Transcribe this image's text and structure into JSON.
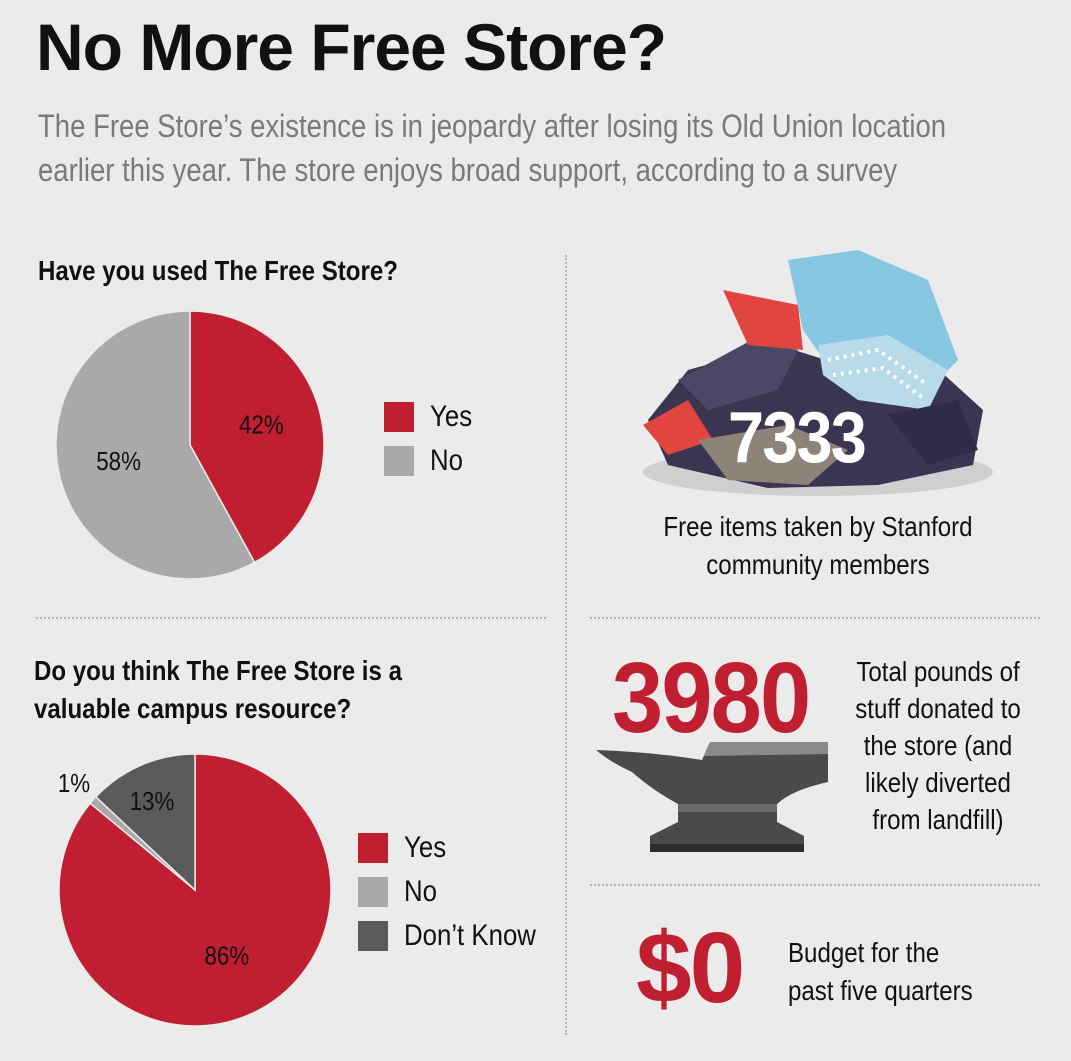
{
  "title": "No More Free Store?",
  "subtitle_line1": "The Free Store’s existence is in jeopardy after losing its Old Union location",
  "subtitle_line2": "earlier this year. The store enjoys broad support, according to a survey",
  "colors": {
    "red": "#c01f32",
    "light_gray": "#a9a9ab",
    "dark_gray": "#5a5a5c"
  },
  "chart_data": [
    {
      "type": "pie",
      "title": "Have you used The Free Store?",
      "slices": [
        {
          "label": "Yes",
          "value": 42,
          "display": "42%",
          "color": "#c01f32"
        },
        {
          "label": "No",
          "value": 58,
          "display": "58%",
          "color": "#a9a9ab"
        }
      ]
    },
    {
      "type": "pie",
      "title_line1": "Do you think The Free Store is a",
      "title_line2": "valuable campus resource?",
      "slices": [
        {
          "label": "Yes",
          "value": 86,
          "display": "86%",
          "color": "#c01f32"
        },
        {
          "label": "No",
          "value": 1,
          "display": "1%",
          "color": "#a9a9ab"
        },
        {
          "label": "Don’t Know",
          "value": 13,
          "display": "13%",
          "color": "#5a5a5c"
        }
      ]
    }
  ],
  "stats": {
    "items_number": "7333",
    "items_caption_line1": "Free items taken by Stanford",
    "items_caption_line2": "community members",
    "pounds_number": "3980",
    "pounds_caption_lines": [
      "Total pounds of",
      "stuff donated to",
      "the store (and",
      "likely diverted",
      "from landfill)"
    ],
    "budget_number": "$0",
    "budget_caption_line1": "Budget for the",
    "budget_caption_line2": "past five quarters"
  },
  "illustrations": {
    "clothes": "clothes-pile-icon",
    "anvil": "anvil-icon"
  }
}
